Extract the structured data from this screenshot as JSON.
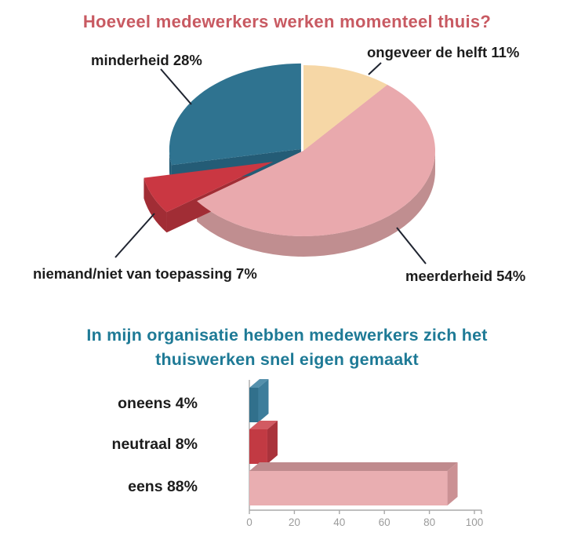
{
  "chart_data": [
    {
      "type": "pie",
      "style": "3d",
      "title": "Hoeveel medewerkers werken momenteel thuis?",
      "start_angle_deg": 0,
      "direction": "clockwise",
      "slices": [
        {
          "category": "ongeveer de helft",
          "label": "ongeveer de helft 11%",
          "value": 11,
          "color": "#f6d7a6",
          "side_color": "#dab37e",
          "explode": 0
        },
        {
          "category": "meerderheid",
          "label": "meerderheid 54%",
          "value": 54,
          "color": "#e9a9ad",
          "side_color": "#c08e90",
          "explode": 0
        },
        {
          "category": "niemand/niet van toepassing",
          "label": "niemand/niet van toepassing 7%",
          "value": 7,
          "color": "#ca3742",
          "side_color": "#a12d35",
          "explode": 42
        },
        {
          "category": "minderheid",
          "label": "minderheid 28%",
          "value": 28,
          "color": "#2f7390",
          "side_color": "#245c76",
          "explode": 4
        }
      ]
    },
    {
      "type": "bar",
      "style": "3d",
      "orientation": "horizontal",
      "title": "In mijn organisatie hebben medewerkers zich het thuiswerken snel eigen gemaakt",
      "title_lines": [
        "In mijn organisatie hebben medewerkers zich het",
        "thuiswerken snel eigen gemaakt"
      ],
      "bars": [
        {
          "category": "oneens",
          "label": "oneens 4%",
          "value": 4,
          "color": "#31708c",
          "top_color": "#5490ac",
          "side_color": "#3d7d9b"
        },
        {
          "category": "neutraal",
          "label": "neutraal 8%",
          "value": 8,
          "color": "#c23a43",
          "top_color": "#d25a62",
          "side_color": "#aa333c"
        },
        {
          "category": "eens",
          "label": "eens 88%",
          "value": 88,
          "color": "#e9aeb1",
          "top_color": "#bf8a8d",
          "side_color": "#cb9194"
        }
      ],
      "x_ticks": [
        "0",
        "20",
        "40",
        "60",
        "80",
        "100"
      ],
      "xlim": [
        0,
        100
      ],
      "grid": "off",
      "axis_color": "#aaaaaa",
      "tick_label_color": "#9b9b9b"
    }
  ],
  "theme": {
    "pie_title_color": "#c85a62",
    "bar_title_color": "#1e7a96",
    "label_color": "#1c1c1c",
    "leader_line_color": "#1f2430",
    "background": "#ffffff"
  }
}
